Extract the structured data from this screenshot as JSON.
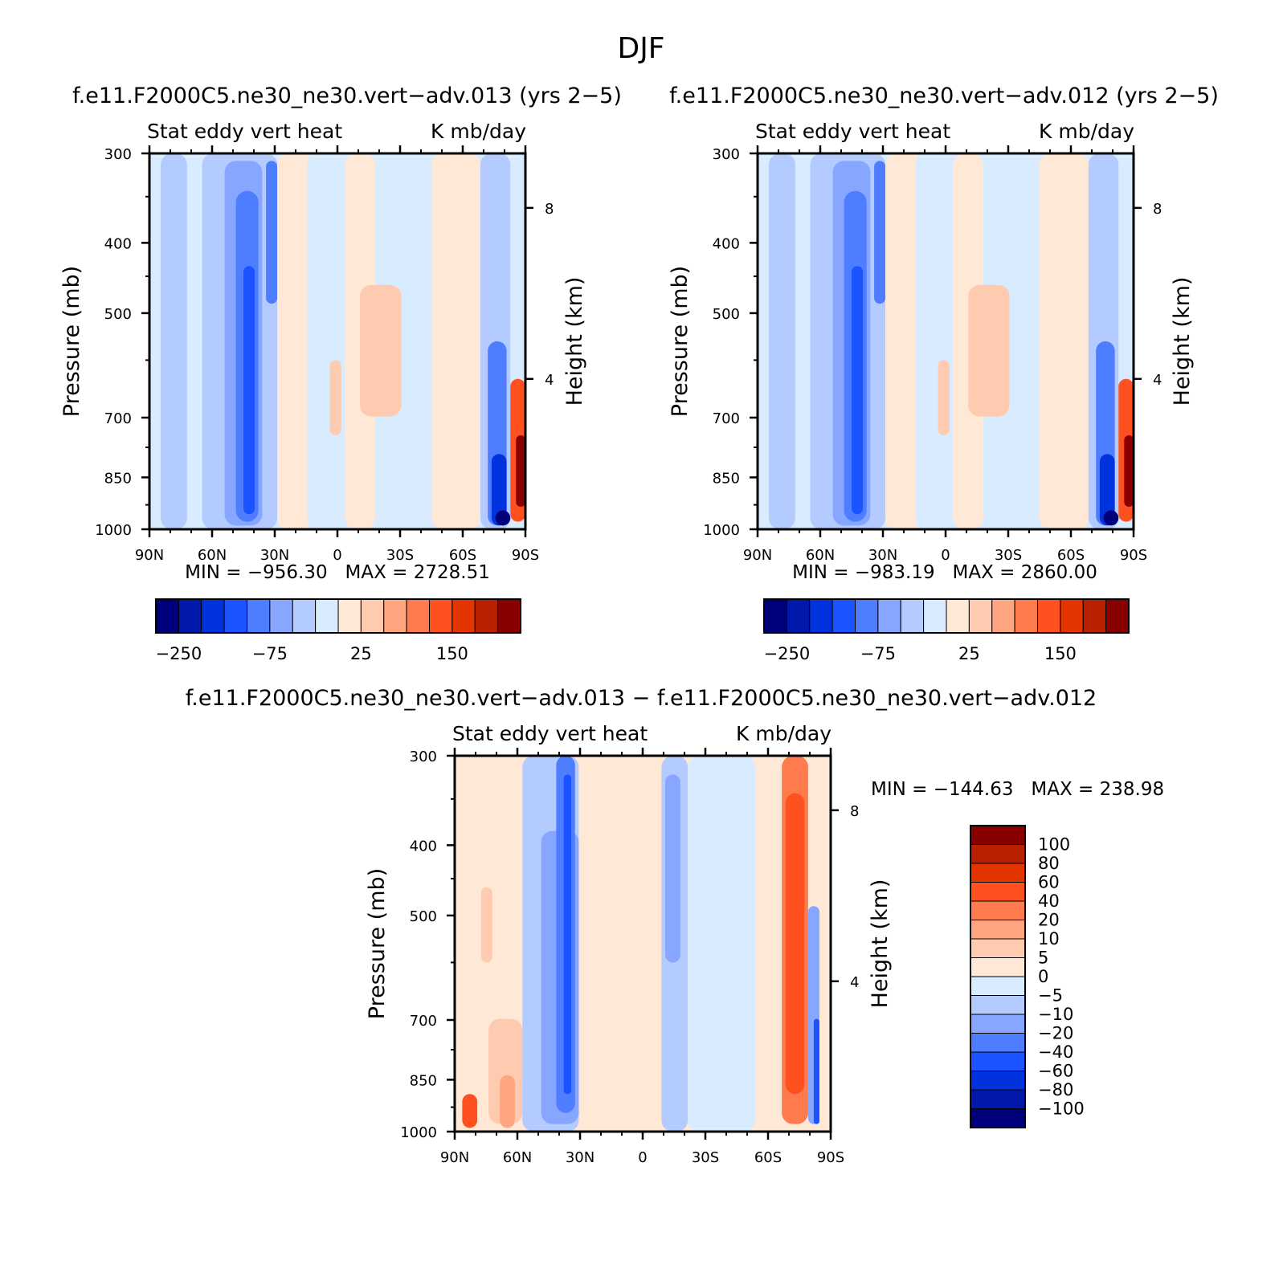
{
  "main_title": "DJF",
  "chart_data": [
    {
      "type": "heatmap",
      "title": "f.e11.F2000C5.ne30_ne30.vert−adv.013 (yrs 2−5)",
      "subtitle_left": "Stat eddy vert heat",
      "subtitle_right": "K mb/day",
      "ylabel": "Pressure (mb)",
      "ylabel_right": "Height (km)",
      "x_ticks": [
        "90N",
        "60N",
        "30N",
        "0",
        "30S",
        "60S",
        "90S"
      ],
      "y_ticks": [
        "300",
        "400",
        "500",
        "700",
        "850",
        "1000"
      ],
      "y_right_ticks": [
        "8",
        "4"
      ],
      "min_max": "MIN = −956.30   MAX = 2728.51",
      "colorbar_labels": [
        "−250",
        "−75",
        "25",
        "150"
      ]
    },
    {
      "type": "heatmap",
      "title": "f.e11.F2000C5.ne30_ne30.vert−adv.012 (yrs 2−5)",
      "subtitle_left": "Stat eddy vert heat",
      "subtitle_right": "K mb/day",
      "ylabel": "Pressure (mb)",
      "ylabel_right": "Height (km)",
      "x_ticks": [
        "90N",
        "60N",
        "30N",
        "0",
        "30S",
        "60S",
        "90S"
      ],
      "y_ticks": [
        "300",
        "400",
        "500",
        "700",
        "850",
        "1000"
      ],
      "y_right_ticks": [
        "8",
        "4"
      ],
      "min_max": "MIN = −983.19   MAX = 2860.00",
      "colorbar_labels": [
        "−250",
        "−75",
        "25",
        "150"
      ]
    },
    {
      "type": "heatmap",
      "title": "f.e11.F2000C5.ne30_ne30.vert−adv.013 − f.e11.F2000C5.ne30_ne30.vert−adv.012",
      "subtitle_left": "Stat eddy vert heat",
      "subtitle_right": "K mb/day",
      "ylabel": "Pressure (mb)",
      "ylabel_right": "Height (km)",
      "x_ticks": [
        "90N",
        "60N",
        "30N",
        "0",
        "30S",
        "60S",
        "90S"
      ],
      "y_ticks": [
        "300",
        "400",
        "500",
        "700",
        "850",
        "1000"
      ],
      "y_right_ticks": [
        "8",
        "4"
      ],
      "min_max": "MIN = −144.63   MAX = 238.98",
      "colorbar_labels": [
        "100",
        "80",
        "60",
        "40",
        "20",
        "10",
        "5",
        "0",
        "−5",
        "−10",
        "−20",
        "−40",
        "−60",
        "−80",
        "−100"
      ]
    }
  ],
  "colors": {
    "palette": [
      "#00007a",
      "#0019aa",
      "#0033dd",
      "#1a53ff",
      "#4f7dff",
      "#86a6ff",
      "#b4cbff",
      "#d8ebff",
      "#ffe9d6",
      "#ffcbb0",
      "#ffa57f",
      "#ff7a4c",
      "#ff5020",
      "#e43400",
      "#b82000",
      "#880000"
    ],
    "neg_bg": "#d8ebff",
    "pos_bg": "#ffe9d6"
  }
}
